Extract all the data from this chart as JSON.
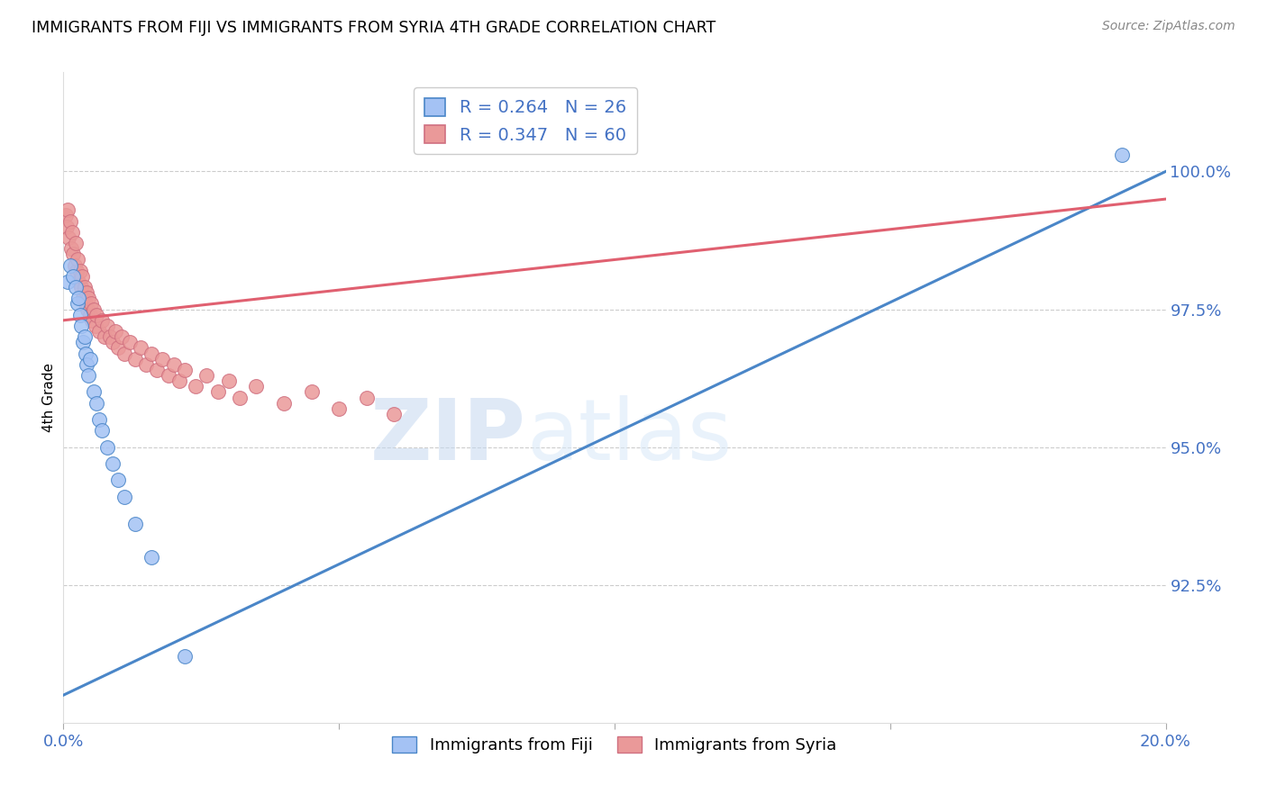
{
  "title": "IMMIGRANTS FROM FIJI VS IMMIGRANTS FROM SYRIA 4TH GRADE CORRELATION CHART",
  "source": "Source: ZipAtlas.com",
  "xlabel_fiji": "Immigrants from Fiji",
  "xlabel_syria": "Immigrants from Syria",
  "ylabel": "4th Grade",
  "xlim": [
    0.0,
    20.0
  ],
  "ylim": [
    90.0,
    101.8
  ],
  "yticks": [
    92.5,
    95.0,
    97.5,
    100.0
  ],
  "ytick_labels": [
    "92.5%",
    "95.0%",
    "97.5%",
    "100.0%"
  ],
  "xticks": [
    0.0,
    5.0,
    10.0,
    15.0,
    20.0
  ],
  "xtick_labels": [
    "0.0%",
    "",
    "",
    "",
    "20.0%"
  ],
  "fiji_color": "#a4c2f4",
  "syria_color": "#ea9999",
  "fiji_line_color": "#4a86c8",
  "syria_line_color": "#e06070",
  "fiji_R": 0.264,
  "fiji_N": 26,
  "syria_R": 0.347,
  "syria_N": 60,
  "legend_R_color": "#4472c4",
  "watermark_zip": "ZIP",
  "watermark_atlas": "atlas",
  "fiji_x": [
    0.08,
    0.12,
    0.18,
    0.22,
    0.25,
    0.28,
    0.3,
    0.32,
    0.35,
    0.38,
    0.4,
    0.42,
    0.45,
    0.48,
    0.55,
    0.6,
    0.65,
    0.7,
    0.8,
    0.9,
    1.0,
    1.1,
    1.3,
    1.6,
    2.2,
    19.2
  ],
  "fiji_y": [
    98.0,
    98.3,
    98.1,
    97.9,
    97.6,
    97.7,
    97.4,
    97.2,
    96.9,
    97.0,
    96.7,
    96.5,
    96.3,
    96.6,
    96.0,
    95.8,
    95.5,
    95.3,
    95.0,
    94.7,
    94.4,
    94.1,
    93.6,
    93.0,
    91.2,
    100.3
  ],
  "syria_x": [
    0.04,
    0.06,
    0.08,
    0.1,
    0.12,
    0.14,
    0.16,
    0.18,
    0.2,
    0.22,
    0.24,
    0.26,
    0.28,
    0.3,
    0.32,
    0.34,
    0.36,
    0.38,
    0.4,
    0.42,
    0.44,
    0.46,
    0.48,
    0.5,
    0.52,
    0.55,
    0.58,
    0.6,
    0.65,
    0.7,
    0.75,
    0.8,
    0.85,
    0.9,
    0.95,
    1.0,
    1.05,
    1.1,
    1.2,
    1.3,
    1.4,
    1.5,
    1.6,
    1.7,
    1.8,
    1.9,
    2.0,
    2.1,
    2.2,
    2.4,
    2.6,
    2.8,
    3.0,
    3.2,
    3.5,
    4.0,
    4.5,
    5.0,
    5.5,
    6.0
  ],
  "syria_y": [
    99.2,
    99.0,
    99.3,
    98.8,
    99.1,
    98.6,
    98.9,
    98.5,
    98.3,
    98.7,
    98.2,
    98.4,
    98.0,
    98.2,
    97.9,
    98.1,
    97.7,
    97.9,
    97.6,
    97.8,
    97.5,
    97.7,
    97.4,
    97.6,
    97.3,
    97.5,
    97.2,
    97.4,
    97.1,
    97.3,
    97.0,
    97.2,
    97.0,
    96.9,
    97.1,
    96.8,
    97.0,
    96.7,
    96.9,
    96.6,
    96.8,
    96.5,
    96.7,
    96.4,
    96.6,
    96.3,
    96.5,
    96.2,
    96.4,
    96.1,
    96.3,
    96.0,
    96.2,
    95.9,
    96.1,
    95.8,
    96.0,
    95.7,
    95.9,
    95.6
  ],
  "fiji_trend_x0": 0.0,
  "fiji_trend_y0": 90.5,
  "fiji_trend_x1": 20.0,
  "fiji_trend_y1": 100.0,
  "syria_trend_x0": 0.0,
  "syria_trend_y0": 97.3,
  "syria_trend_x1": 20.0,
  "syria_trend_y1": 99.5
}
